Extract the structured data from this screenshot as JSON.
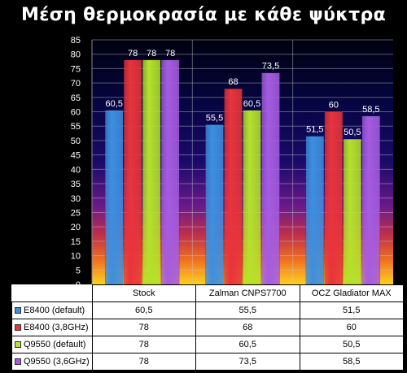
{
  "chart_data": {
    "type": "bar",
    "title": "Μέση θερμοκρασία με κάθε ψύκτρα",
    "categories": [
      "Stock",
      "Zalman CNPS7700",
      "OCZ Gladiator MAX"
    ],
    "series": [
      {
        "name": "E8400 (default)",
        "values": [
          60.5,
          55.5,
          51.5
        ],
        "labels": [
          "60,5",
          "55,5",
          "51,5"
        ],
        "color": "#3d8fe0"
      },
      {
        "name": "E8400 (3,8GHz)",
        "values": [
          78,
          68,
          60
        ],
        "labels": [
          "78",
          "68",
          "60"
        ],
        "color": "#e8343c"
      },
      {
        "name": "Q9550 (default)",
        "values": [
          78,
          60.5,
          50.5
        ],
        "labels": [
          "78",
          "60,5",
          "50,5"
        ],
        "color": "#b4e12c"
      },
      {
        "name": "Q9550 (3,6GHz)",
        "values": [
          78,
          73.5,
          58.5
        ],
        "labels": [
          "78",
          "73,5",
          "58,5"
        ],
        "color": "#a55ce0"
      }
    ],
    "ylim": [
      0,
      85
    ],
    "yticks": [
      0,
      5,
      10,
      15,
      20,
      25,
      30,
      35,
      40,
      45,
      50,
      55,
      60,
      65,
      70,
      75,
      80,
      85
    ],
    "grid": true,
    "legend": "data-table"
  }
}
